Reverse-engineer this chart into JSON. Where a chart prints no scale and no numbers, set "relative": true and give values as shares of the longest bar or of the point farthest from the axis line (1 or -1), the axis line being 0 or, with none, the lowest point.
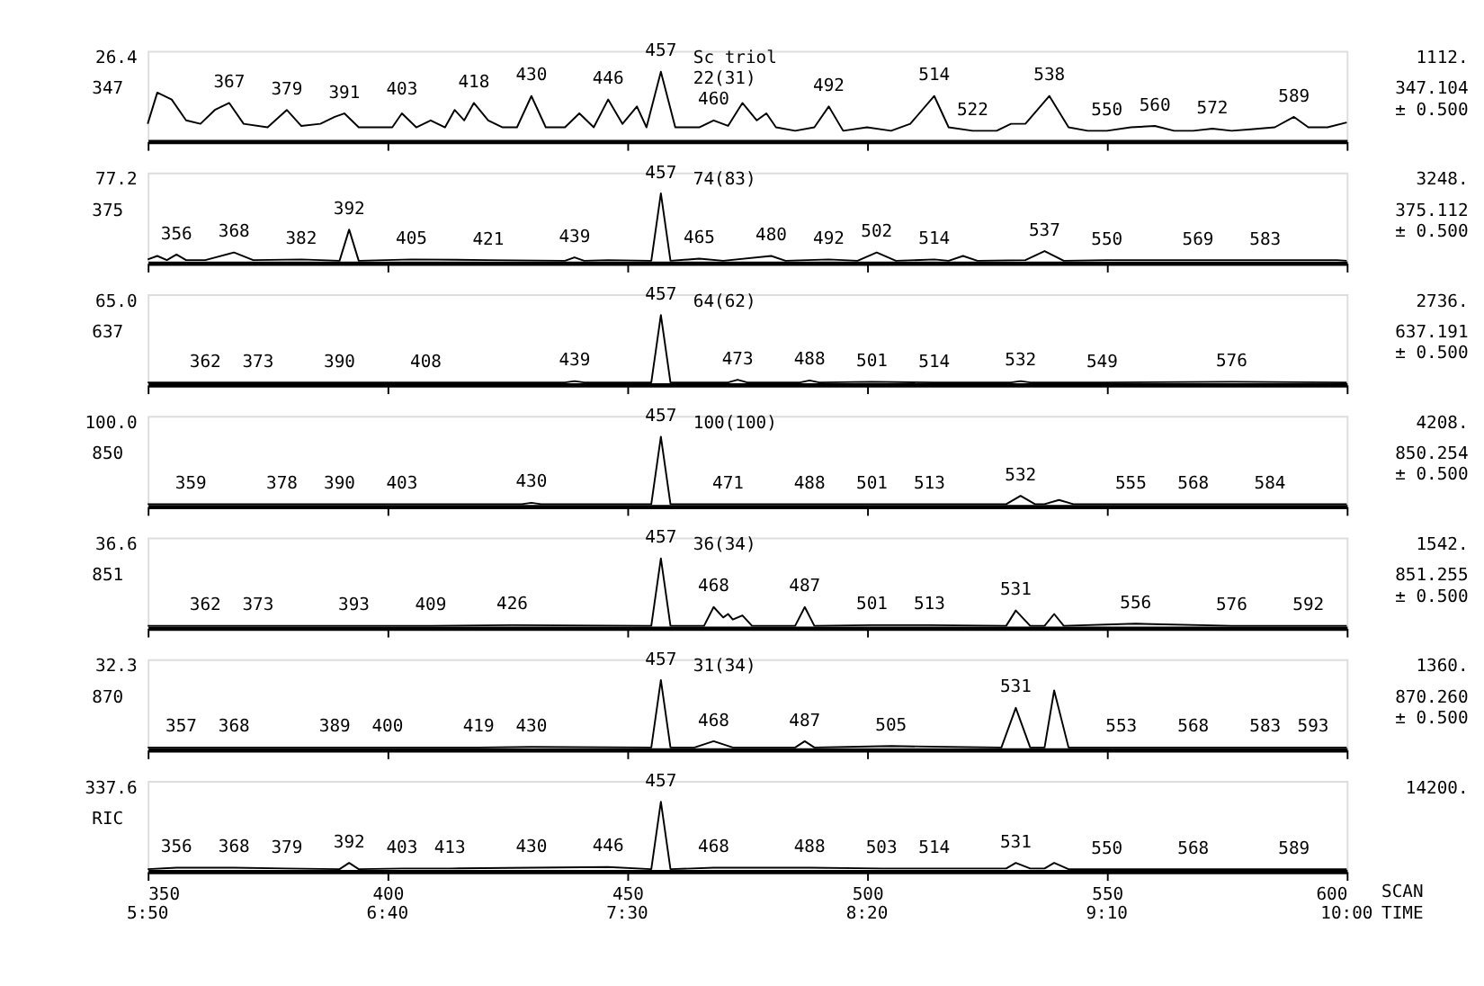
{
  "chart_data": [
    {
      "type": "line",
      "relative": true,
      "ylabel": "347",
      "tick_labels": false,
      "grid": false,
      "xlim": [
        350,
        600
      ],
      "xticks": [
        350,
        400,
        450,
        500,
        550,
        600
      ],
      "series": [
        {
          "color": "#000000",
          "x": [
            350,
            352,
            355,
            358,
            361,
            364,
            367,
            370,
            375,
            379,
            382,
            386,
            389,
            391,
            394,
            398,
            401,
            403,
            406,
            409,
            412,
            414,
            416,
            418,
            421,
            424,
            427,
            430,
            433,
            437,
            440,
            443,
            446,
            449,
            452,
            454,
            457,
            460,
            465,
            468,
            471,
            474,
            477,
            479,
            481,
            485,
            489,
            492,
            495,
            500,
            505,
            509,
            514,
            517,
            522,
            527,
            530,
            533,
            538,
            542,
            546,
            550,
            555,
            560,
            564,
            568,
            572,
            576,
            580,
            585,
            589,
            592,
            596,
            600
          ],
          "values": [
            0.25,
            0.7,
            0.6,
            0.3,
            0.25,
            0.45,
            0.55,
            0.25,
            0.2,
            0.45,
            0.22,
            0.25,
            0.35,
            0.4,
            0.2,
            0.2,
            0.2,
            0.4,
            0.2,
            0.3,
            0.2,
            0.45,
            0.3,
            0.55,
            0.3,
            0.2,
            0.2,
            0.65,
            0.2,
            0.2,
            0.4,
            0.2,
            0.6,
            0.25,
            0.5,
            0.2,
            1.0,
            0.2,
            0.2,
            0.3,
            0.22,
            0.55,
            0.3,
            0.4,
            0.2,
            0.15,
            0.2,
            0.5,
            0.15,
            0.2,
            0.15,
            0.25,
            0.65,
            0.2,
            0.15,
            0.15,
            0.25,
            0.25,
            0.65,
            0.2,
            0.15,
            0.15,
            0.2,
            0.22,
            0.15,
            0.15,
            0.18,
            0.15,
            0.17,
            0.2,
            0.35,
            0.2,
            0.2,
            0.27
          ]
        }
      ],
      "annotations": [
        "26.4",
        "1112.",
        "347.104",
        "± 0.500",
        "Sc triol",
        "22(31)",
        {
          "text": "367",
          "x": 367,
          "y": 0.55
        },
        {
          "text": "379",
          "x": 379,
          "y": 0.45
        },
        {
          "text": "391",
          "x": 391,
          "y": 0.4
        },
        {
          "text": "403",
          "x": 403,
          "y": 0.45
        },
        {
          "text": "418",
          "x": 418,
          "y": 0.55
        },
        {
          "text": "430",
          "x": 430,
          "y": 0.65
        },
        {
          "text": "446",
          "x": 446,
          "y": 0.6
        },
        {
          "text": "457",
          "x": 457,
          "y": 1.0
        },
        {
          "text": "460",
          "x": 468,
          "y": 0.3
        },
        {
          "text": "492",
          "x": 492,
          "y": 0.5
        },
        {
          "text": "514",
          "x": 514,
          "y": 0.65
        },
        {
          "text": "522",
          "x": 522,
          "y": 0.15
        },
        {
          "text": "538",
          "x": 538,
          "y": 0.65
        },
        {
          "text": "550",
          "x": 550,
          "y": 0.15
        },
        {
          "text": "560",
          "x": 560,
          "y": 0.22
        },
        {
          "text": "572",
          "x": 572,
          "y": 0.18
        },
        {
          "text": "589",
          "x": 589,
          "y": 0.35
        }
      ]
    },
    {
      "type": "line",
      "relative": true,
      "ylabel": "375",
      "tick_labels": false,
      "grid": false,
      "xlim": [
        350,
        600
      ],
      "xticks": [
        350,
        400,
        450,
        500,
        550,
        600
      ],
      "series": [
        {
          "color": "#000000",
          "x": [
            350,
            352,
            354,
            356,
            358,
            362,
            368,
            372,
            382,
            390,
            392,
            394,
            405,
            421,
            437,
            439,
            441,
            446,
            455,
            457,
            459,
            465,
            470,
            480,
            483,
            492,
            498,
            502,
            506,
            514,
            517,
            520,
            523,
            533,
            537,
            541,
            550,
            569,
            583,
            598,
            600
          ],
          "values": [
            0.05,
            0.1,
            0.04,
            0.12,
            0.04,
            0.04,
            0.15,
            0.04,
            0.05,
            0.03,
            0.48,
            0.03,
            0.05,
            0.04,
            0.03,
            0.08,
            0.03,
            0.04,
            0.03,
            1.0,
            0.03,
            0.06,
            0.03,
            0.1,
            0.03,
            0.05,
            0.03,
            0.15,
            0.03,
            0.05,
            0.03,
            0.1,
            0.03,
            0.04,
            0.17,
            0.03,
            0.04,
            0.04,
            0.04,
            0.04,
            0.03
          ]
        }
      ],
      "annotations": [
        "77.2",
        "3248.",
        "375.112",
        "± 0.500",
        "74(83)",
        {
          "text": "356",
          "x": 356,
          "y": 0.12
        },
        {
          "text": "368",
          "x": 368,
          "y": 0.15
        },
        {
          "text": "382",
          "x": 382,
          "y": 0.05
        },
        {
          "text": "392",
          "x": 392,
          "y": 0.48
        },
        {
          "text": "405",
          "x": 405,
          "y": 0.05
        },
        {
          "text": "421",
          "x": 421,
          "y": 0.04
        },
        {
          "text": "439",
          "x": 439,
          "y": 0.08
        },
        {
          "text": "457",
          "x": 457,
          "y": 1.0
        },
        {
          "text": "465",
          "x": 465,
          "y": 0.06
        },
        {
          "text": "480",
          "x": 480,
          "y": 0.1
        },
        {
          "text": "492",
          "x": 492,
          "y": 0.05
        },
        {
          "text": "502",
          "x": 502,
          "y": 0.15
        },
        {
          "text": "514",
          "x": 514,
          "y": 0.05
        },
        {
          "text": "537",
          "x": 537,
          "y": 0.17
        },
        {
          "text": "550",
          "x": 550,
          "y": 0.04
        },
        {
          "text": "569",
          "x": 569,
          "y": 0.04
        },
        {
          "text": "583",
          "x": 583,
          "y": 0.04
        }
      ]
    },
    {
      "type": "line",
      "relative": true,
      "ylabel": "637",
      "tick_labels": false,
      "grid": false,
      "xlim": [
        350,
        600
      ],
      "xticks": [
        350,
        400,
        450,
        500,
        550,
        600
      ],
      "series": [
        {
          "color": "#000000",
          "x": [
            350,
            362,
            373,
            390,
            408,
            437,
            439,
            441,
            455,
            457,
            459,
            471,
            473,
            475,
            486,
            488,
            490,
            501,
            514,
            530,
            532,
            534,
            549,
            576,
            600
          ],
          "values": [
            0.03,
            0.03,
            0.03,
            0.03,
            0.03,
            0.03,
            0.05,
            0.03,
            0.03,
            1.0,
            0.03,
            0.03,
            0.07,
            0.03,
            0.03,
            0.06,
            0.03,
            0.04,
            0.03,
            0.03,
            0.05,
            0.03,
            0.03,
            0.04,
            0.03
          ]
        }
      ],
      "annotations": [
        "65.0",
        "2736.",
        "637.191",
        "± 0.500",
        "64(62)",
        {
          "text": "362",
          "x": 362,
          "y": 0.03
        },
        {
          "text": "373",
          "x": 373,
          "y": 0.03
        },
        {
          "text": "390",
          "x": 390,
          "y": 0.03
        },
        {
          "text": "408",
          "x": 408,
          "y": 0.03
        },
        {
          "text": "439",
          "x": 439,
          "y": 0.05
        },
        {
          "text": "457",
          "x": 457,
          "y": 1.0
        },
        {
          "text": "473",
          "x": 473,
          "y": 0.07
        },
        {
          "text": "488",
          "x": 488,
          "y": 0.06
        },
        {
          "text": "501",
          "x": 501,
          "y": 0.04
        },
        {
          "text": "514",
          "x": 514,
          "y": 0.03
        },
        {
          "text": "532",
          "x": 532,
          "y": 0.05
        },
        {
          "text": "549",
          "x": 549,
          "y": 0.03
        },
        {
          "text": "576",
          "x": 576,
          "y": 0.04
        }
      ]
    },
    {
      "type": "line",
      "relative": true,
      "ylabel": "850",
      "tick_labels": false,
      "grid": false,
      "xlim": [
        350,
        600
      ],
      "xticks": [
        350,
        400,
        450,
        500,
        550,
        600
      ],
      "series": [
        {
          "color": "#000000",
          "x": [
            350,
            359,
            378,
            390,
            403,
            428,
            430,
            432,
            455,
            457,
            459,
            471,
            488,
            501,
            513,
            529,
            532,
            535,
            537,
            540,
            543,
            555,
            568,
            584,
            600
          ],
          "values": [
            0.03,
            0.03,
            0.03,
            0.03,
            0.03,
            0.03,
            0.05,
            0.03,
            0.03,
            1.0,
            0.03,
            0.03,
            0.03,
            0.03,
            0.03,
            0.03,
            0.15,
            0.03,
            0.03,
            0.09,
            0.03,
            0.03,
            0.03,
            0.03,
            0.03
          ]
        }
      ],
      "annotations": [
        "100.0",
        "4208.",
        "850.254",
        "± 0.500",
        "100(100)",
        {
          "text": "359",
          "x": 359,
          "y": 0.03
        },
        {
          "text": "378",
          "x": 378,
          "y": 0.03
        },
        {
          "text": "390",
          "x": 390,
          "y": 0.03
        },
        {
          "text": "403",
          "x": 403,
          "y": 0.03
        },
        {
          "text": "430",
          "x": 430,
          "y": 0.05
        },
        {
          "text": "457",
          "x": 457,
          "y": 1.0
        },
        {
          "text": "471",
          "x": 471,
          "y": 0.03
        },
        {
          "text": "488",
          "x": 488,
          "y": 0.03
        },
        {
          "text": "501",
          "x": 501,
          "y": 0.03
        },
        {
          "text": "513",
          "x": 513,
          "y": 0.03
        },
        {
          "text": "532",
          "x": 532,
          "y": 0.15
        },
        {
          "text": "555",
          "x": 555,
          "y": 0.03
        },
        {
          "text": "568",
          "x": 568,
          "y": 0.03
        },
        {
          "text": "584",
          "x": 584,
          "y": 0.03
        }
      ]
    },
    {
      "type": "line",
      "relative": true,
      "ylabel": "851",
      "tick_labels": false,
      "grid": false,
      "xlim": [
        350,
        600
      ],
      "xticks": [
        350,
        400,
        450,
        500,
        550,
        600
      ],
      "series": [
        {
          "color": "#000000",
          "x": [
            350,
            362,
            373,
            393,
            409,
            426,
            455,
            457,
            459,
            466,
            468,
            470,
            471,
            472,
            474,
            476,
            485,
            487,
            489,
            501,
            513,
            529,
            531,
            534,
            537,
            539,
            541,
            556,
            576,
            592,
            600
          ],
          "values": [
            0.03,
            0.03,
            0.03,
            0.03,
            0.03,
            0.04,
            0.03,
            1.0,
            0.03,
            0.03,
            0.3,
            0.15,
            0.2,
            0.12,
            0.18,
            0.03,
            0.03,
            0.3,
            0.03,
            0.04,
            0.04,
            0.03,
            0.25,
            0.03,
            0.03,
            0.2,
            0.03,
            0.06,
            0.03,
            0.03,
            0.03
          ]
        }
      ],
      "annotations": [
        "36.6",
        "1542.",
        "851.255",
        "± 0.500",
        "36(34)",
        {
          "text": "362",
          "x": 362,
          "y": 0.03
        },
        {
          "text": "373",
          "x": 373,
          "y": 0.03
        },
        {
          "text": "393",
          "x": 393,
          "y": 0.03
        },
        {
          "text": "409",
          "x": 409,
          "y": 0.03
        },
        {
          "text": "426",
          "x": 426,
          "y": 0.04
        },
        {
          "text": "457",
          "x": 457,
          "y": 1.0
        },
        {
          "text": "468",
          "x": 468,
          "y": 0.3
        },
        {
          "text": "487",
          "x": 487,
          "y": 0.3
        },
        {
          "text": "501",
          "x": 501,
          "y": 0.04
        },
        {
          "text": "513",
          "x": 513,
          "y": 0.04
        },
        {
          "text": "531",
          "x": 531,
          "y": 0.25
        },
        {
          "text": "556",
          "x": 556,
          "y": 0.06
        },
        {
          "text": "576",
          "x": 576,
          "y": 0.03
        },
        {
          "text": "592",
          "x": 592,
          "y": 0.03
        }
      ]
    },
    {
      "type": "line",
      "relative": true,
      "ylabel": "870",
      "tick_labels": false,
      "grid": false,
      "xlim": [
        350,
        600
      ],
      "xticks": [
        350,
        400,
        450,
        500,
        550,
        600
      ],
      "series": [
        {
          "color": "#000000",
          "x": [
            350,
            357,
            368,
            389,
            400,
            419,
            430,
            455,
            457,
            459,
            464,
            468,
            472,
            485,
            487,
            489,
            505,
            528,
            531,
            534,
            537,
            539,
            542,
            553,
            568,
            583,
            593,
            600
          ],
          "values": [
            0.03,
            0.03,
            0.03,
            0.03,
            0.03,
            0.03,
            0.04,
            0.03,
            1.0,
            0.03,
            0.03,
            0.12,
            0.03,
            0.03,
            0.12,
            0.03,
            0.05,
            0.03,
            0.6,
            0.03,
            0.03,
            0.85,
            0.03,
            0.03,
            0.03,
            0.03,
            0.03,
            0.03
          ]
        }
      ],
      "annotations": [
        "32.3",
        "1360.",
        "870.260",
        "± 0.500",
        "31(34)",
        {
          "text": "357",
          "x": 357,
          "y": 0.03
        },
        {
          "text": "368",
          "x": 368,
          "y": 0.03
        },
        {
          "text": "389",
          "x": 389,
          "y": 0.03
        },
        {
          "text": "400",
          "x": 400,
          "y": 0.03
        },
        {
          "text": "419",
          "x": 419,
          "y": 0.03
        },
        {
          "text": "430",
          "x": 430,
          "y": 0.04
        },
        {
          "text": "457",
          "x": 457,
          "y": 1.0
        },
        {
          "text": "468",
          "x": 468,
          "y": 0.12
        },
        {
          "text": "487",
          "x": 487,
          "y": 0.12
        },
        {
          "text": "505",
          "x": 505,
          "y": 0.05
        },
        {
          "text": "531",
          "x": 531,
          "y": 0.6
        },
        {
          "text": "553",
          "x": 553,
          "y": 0.03
        },
        {
          "text": "568",
          "x": 568,
          "y": 0.03
        },
        {
          "text": "583",
          "x": 583,
          "y": 0.03
        },
        {
          "text": "593",
          "x": 593,
          "y": 0.03
        }
      ]
    },
    {
      "type": "line",
      "relative": true,
      "ylabel": "RIC",
      "xlabel": "SCAN",
      "x2label": "TIME",
      "tick_labels": "x",
      "grid": false,
      "xlim": [
        350,
        600
      ],
      "xticks": [
        350,
        400,
        450,
        500,
        550,
        600
      ],
      "x2lim": [
        350,
        600
      ],
      "x2ticks": [
        {
          "value": 350,
          "label": "5:50"
        },
        {
          "value": 400,
          "label": "6:40"
        },
        {
          "value": 450,
          "label": "7:30"
        },
        {
          "value": 500,
          "label": "8:20"
        },
        {
          "value": 550,
          "label": "9:10"
        },
        {
          "value": 600,
          "label": "10:00"
        }
      ],
      "series": [
        {
          "color": "#000000",
          "x": [
            350,
            356,
            368,
            379,
            390,
            392,
            394,
            403,
            413,
            430,
            446,
            455,
            457,
            459,
            468,
            488,
            503,
            514,
            529,
            531,
            534,
            537,
            539,
            542,
            550,
            568,
            589,
            600
          ],
          "values": [
            0.03,
            0.05,
            0.05,
            0.04,
            0.03,
            0.12,
            0.03,
            0.04,
            0.04,
            0.05,
            0.06,
            0.03,
            1.0,
            0.03,
            0.05,
            0.05,
            0.04,
            0.04,
            0.04,
            0.12,
            0.04,
            0.04,
            0.12,
            0.03,
            0.03,
            0.03,
            0.03,
            0.03
          ]
        }
      ],
      "annotations": [
        "337.6",
        "14200.",
        {
          "text": "356",
          "x": 356,
          "y": 0.05
        },
        {
          "text": "368",
          "x": 368,
          "y": 0.05
        },
        {
          "text": "379",
          "x": 379,
          "y": 0.04
        },
        {
          "text": "392",
          "x": 392,
          "y": 0.12
        },
        {
          "text": "403",
          "x": 403,
          "y": 0.04
        },
        {
          "text": "413",
          "x": 413,
          "y": 0.04
        },
        {
          "text": "430",
          "x": 430,
          "y": 0.05
        },
        {
          "text": "446",
          "x": 446,
          "y": 0.06
        },
        {
          "text": "457",
          "x": 457,
          "y": 1.0
        },
        {
          "text": "468",
          "x": 468,
          "y": 0.05
        },
        {
          "text": "488",
          "x": 488,
          "y": 0.05
        },
        {
          "text": "503",
          "x": 503,
          "y": 0.04
        },
        {
          "text": "514",
          "x": 514,
          "y": 0.04
        },
        {
          "text": "531",
          "x": 531,
          "y": 0.12
        },
        {
          "text": "550",
          "x": 550,
          "y": 0.03
        },
        {
          "text": "568",
          "x": 568,
          "y": 0.03
        },
        {
          "text": "589",
          "x": 589,
          "y": 0.03
        }
      ]
    }
  ]
}
